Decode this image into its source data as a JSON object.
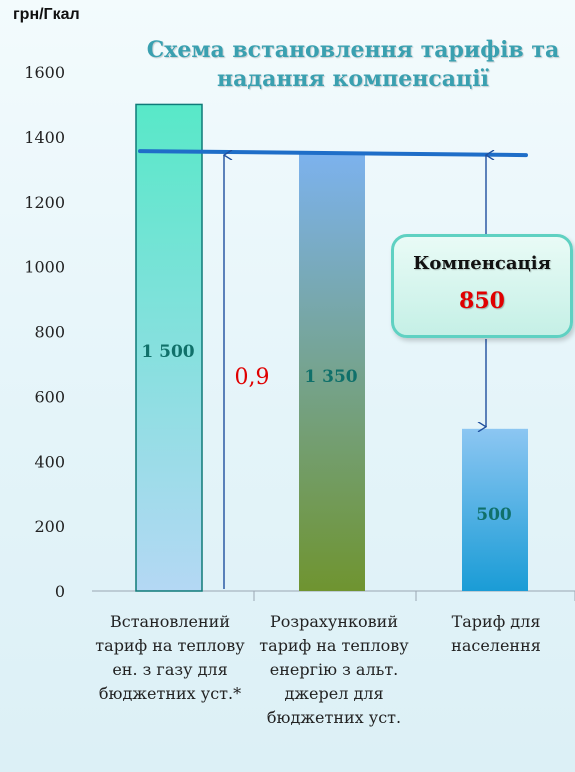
{
  "unit_label": "грн/Гкал",
  "title_lines": [
    "Схема встановлення тарифів та",
    "надання  компенсації"
  ],
  "categories": [
    "Встановлений тариф на теплову ен. з газу для бюджетних уст.*",
    "Розрахунковий тариф на теплову енергію з альт. джерел для бюджетних уст.",
    "Тариф для населення"
  ],
  "data_labels": [
    "1 500",
    "1 350",
    "500"
  ],
  "ratio_label": "0,9",
  "compensation": {
    "title": "Компенсація",
    "value": "850"
  },
  "colors": {
    "bar1_top": "#58e8c8",
    "bar1_bottom": "#b4d8f4",
    "bar1_border": "#0f7a78",
    "bar2_top": "#7cb2ee",
    "bar2_bottom": "#6f9430",
    "bar3_top": "#8cc6f2",
    "bar3_bottom": "#1a9cd6",
    "reference_line": "#1f6ec8",
    "data_label": "#10706a",
    "ratio_label": "#e00000"
  },
  "chart_data": {
    "type": "bar",
    "title": "Схема встановлення тарифів та надання  компенсації",
    "ylabel": "грн/Гкал",
    "categories": [
      "Встановлений тариф на теплову ен. з газу для бюджетних уст.*",
      "Розрахунковий тариф на теплову енергію з альт. джерел для бюджетних уст.",
      "Тариф для населення"
    ],
    "values": [
      1500,
      1350,
      500
    ],
    "ylim": [
      0,
      1600
    ],
    "yticks": [
      0,
      200,
      400,
      600,
      800,
      1000,
      1200,
      1400,
      1600
    ],
    "reference_line": 1350,
    "grid": false,
    "annotations": [
      {
        "text": "0,9"
      },
      {
        "text": "Компенсація 850"
      }
    ]
  }
}
